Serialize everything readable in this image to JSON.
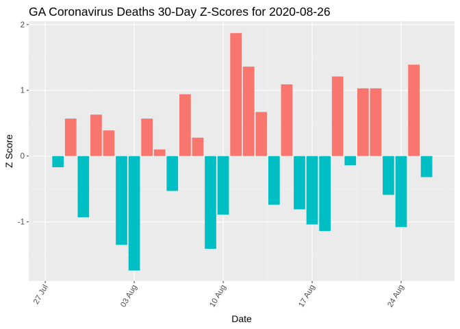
{
  "chart_data": {
    "type": "bar",
    "title": "GA Coronavirus Deaths 30-Day Z-Scores for 2020-08-26",
    "xlabel": "Date",
    "ylabel": "Z Score",
    "ylim": [
      -1.9,
      2.05
    ],
    "y_ticks": [
      2,
      1,
      0,
      -1
    ],
    "y_tick_labels": [
      "2",
      "1",
      "0",
      "-1"
    ],
    "x_start_day": 0,
    "x_tick_days": [
      0,
      7,
      14,
      21,
      28
    ],
    "x_tick_labels": [
      "27 Jul",
      "03 Aug",
      "10 Aug",
      "17 Aug",
      "24 Aug"
    ],
    "xlim_days": [
      -1.3,
      32.2
    ],
    "dates": [
      "2020-07-28",
      "2020-07-29",
      "2020-07-30",
      "2020-07-31",
      "2020-08-01",
      "2020-08-02",
      "2020-08-03",
      "2020-08-04",
      "2020-08-05",
      "2020-08-06",
      "2020-08-07",
      "2020-08-08",
      "2020-08-09",
      "2020-08-10",
      "2020-08-11",
      "2020-08-12",
      "2020-08-13",
      "2020-08-14",
      "2020-08-15",
      "2020-08-16",
      "2020-08-17",
      "2020-08-18",
      "2020-08-19",
      "2020-08-20",
      "2020-08-21",
      "2020-08-22",
      "2020-08-23",
      "2020-08-24",
      "2020-08-25",
      "2020-08-26"
    ],
    "values": [
      -0.17,
      0.57,
      -0.93,
      0.63,
      0.39,
      -1.35,
      -1.74,
      0.57,
      0.1,
      -0.53,
      0.94,
      0.28,
      -1.41,
      -0.89,
      1.87,
      1.36,
      0.67,
      -0.74,
      1.09,
      -0.81,
      -1.04,
      -1.14,
      1.21,
      -0.14,
      1.03,
      1.03,
      -0.59,
      -1.08,
      1.39,
      -0.32
    ],
    "colors": {
      "positive": "#F8766D",
      "negative": "#00BFC4",
      "panel": "#EBEBEB",
      "grid_major": "#FFFFFF",
      "grid_minor": "#F5F5F5"
    }
  }
}
